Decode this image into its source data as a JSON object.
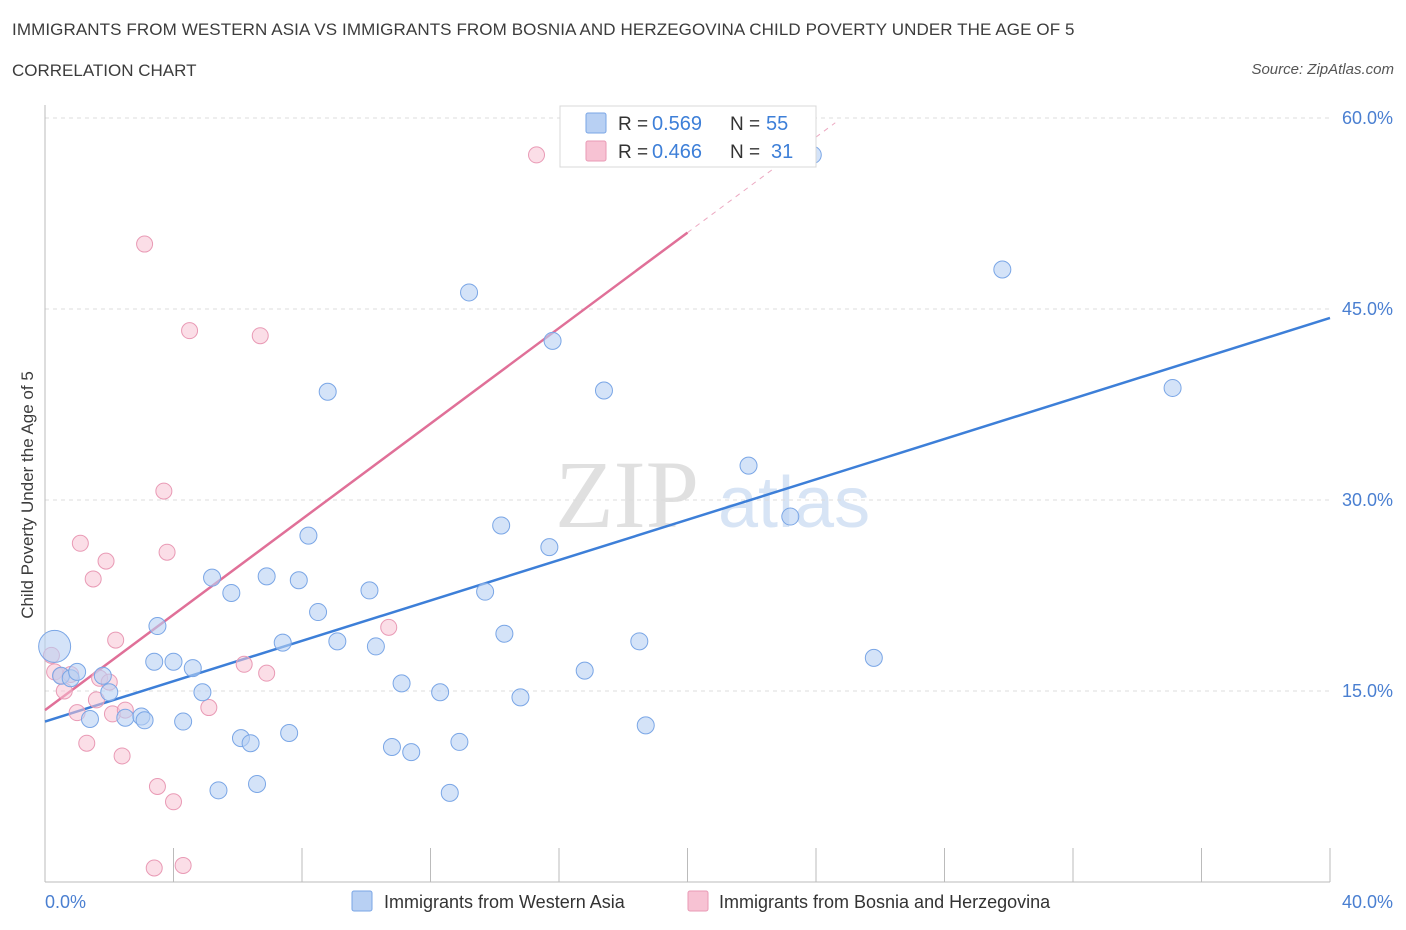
{
  "header": {
    "title": "IMMIGRANTS FROM WESTERN ASIA VS IMMIGRANTS FROM BOSNIA AND HERZEGOVINA CHILD POVERTY UNDER THE AGE OF 5",
    "subtitle": "CORRELATION CHART",
    "source": "Source: ZipAtlas.com"
  },
  "watermark": {
    "zip": "ZIP",
    "atlas": "atlas"
  },
  "colors": {
    "blue": "#3d7fd8",
    "blue_fill": "#b8d0f3",
    "pink": "#e07098",
    "pink_fill": "#f7c2d3",
    "grid": "#dddddd",
    "tick_text": "#4a7fd1"
  },
  "legend": {
    "blue": {
      "r_label": "R =",
      "r_value": "0.569",
      "n_label": "N =",
      "n_value": "55"
    },
    "pink": {
      "r_label": "R =",
      "r_value": "0.466",
      "n_label": "N =",
      "n_value": "31"
    }
  },
  "chart_data": {
    "type": "scatter",
    "title": "IMMIGRANTS FROM WESTERN ASIA VS IMMIGRANTS FROM BOSNIA AND HERZEGOVINA CHILD POVERTY UNDER THE AGE OF 5",
    "xlabel": "",
    "ylabel": "Child Poverty Under the Age of 5",
    "xlim": [
      0,
      40
    ],
    "ylim": [
      0,
      60
    ],
    "x_tick_labels": [
      "0.0%",
      "40.0%"
    ],
    "y_ticks": [
      15,
      30,
      45,
      60
    ],
    "y_tick_labels": [
      "15.0%",
      "30.0%",
      "45.0%",
      "60.0%"
    ],
    "grid": true,
    "series": [
      {
        "name": "Immigrants from Western Asia",
        "color": "#3d7fd8",
        "trend": {
          "x": [
            0,
            40
          ],
          "y": [
            12.6,
            44.3
          ]
        },
        "points": [
          [
            0.3,
            18.5
          ],
          [
            0.5,
            16.2
          ],
          [
            0.8,
            16.0
          ],
          [
            1.0,
            16.5
          ],
          [
            1.4,
            12.8
          ],
          [
            1.8,
            16.2
          ],
          [
            2.0,
            14.9
          ],
          [
            2.5,
            12.9
          ],
          [
            3.0,
            13.0
          ],
          [
            3.1,
            12.7
          ],
          [
            3.4,
            17.3
          ],
          [
            3.5,
            20.1
          ],
          [
            4.0,
            17.3
          ],
          [
            4.3,
            12.6
          ],
          [
            4.6,
            16.8
          ],
          [
            4.9,
            14.9
          ],
          [
            5.2,
            23.9
          ],
          [
            5.4,
            7.2
          ],
          [
            5.8,
            22.7
          ],
          [
            6.1,
            11.3
          ],
          [
            6.4,
            10.9
          ],
          [
            6.6,
            7.7
          ],
          [
            6.9,
            24.0
          ],
          [
            7.4,
            18.8
          ],
          [
            7.6,
            11.7
          ],
          [
            7.9,
            23.7
          ],
          [
            8.2,
            27.2
          ],
          [
            8.5,
            21.2
          ],
          [
            8.8,
            38.5
          ],
          [
            9.1,
            18.9
          ],
          [
            10.1,
            22.9
          ],
          [
            10.3,
            18.5
          ],
          [
            10.8,
            10.6
          ],
          [
            11.1,
            15.6
          ],
          [
            11.4,
            10.2
          ],
          [
            12.3,
            14.9
          ],
          [
            12.6,
            7.0
          ],
          [
            12.9,
            11.0
          ],
          [
            13.2,
            46.3
          ],
          [
            13.7,
            22.8
          ],
          [
            14.2,
            28.0
          ],
          [
            14.3,
            19.5
          ],
          [
            14.8,
            14.5
          ],
          [
            15.7,
            26.3
          ],
          [
            15.8,
            42.5
          ],
          [
            16.8,
            16.6
          ],
          [
            17.4,
            38.6
          ],
          [
            18.5,
            18.9
          ],
          [
            18.7,
            12.3
          ],
          [
            21.9,
            32.7
          ],
          [
            23.2,
            28.7
          ],
          [
            23.9,
            57.1
          ],
          [
            25.8,
            17.6
          ],
          [
            29.8,
            48.1
          ],
          [
            35.1,
            38.8
          ]
        ]
      },
      {
        "name": "Immigrants from Bosnia and Herzegovina",
        "color": "#e07098",
        "trend": {
          "x": [
            0,
            20
          ],
          "y": [
            13.5,
            51.0
          ]
        },
        "points": [
          [
            0.2,
            17.8
          ],
          [
            0.3,
            16.5
          ],
          [
            0.5,
            16.2
          ],
          [
            0.6,
            15.0
          ],
          [
            0.8,
            16.3
          ],
          [
            1.0,
            13.3
          ],
          [
            1.1,
            26.6
          ],
          [
            1.3,
            10.9
          ],
          [
            1.5,
            23.8
          ],
          [
            1.6,
            14.3
          ],
          [
            1.7,
            16.0
          ],
          [
            1.9,
            25.2
          ],
          [
            2.0,
            15.7
          ],
          [
            2.1,
            13.2
          ],
          [
            2.2,
            19.0
          ],
          [
            2.4,
            9.9
          ],
          [
            2.5,
            13.5
          ],
          [
            3.1,
            50.1
          ],
          [
            3.4,
            1.1
          ],
          [
            3.5,
            7.5
          ],
          [
            3.7,
            30.7
          ],
          [
            3.8,
            25.9
          ],
          [
            4.0,
            6.3
          ],
          [
            4.3,
            1.3
          ],
          [
            4.5,
            43.3
          ],
          [
            5.1,
            13.7
          ],
          [
            6.2,
            17.1
          ],
          [
            6.7,
            42.9
          ],
          [
            6.9,
            16.4
          ],
          [
            10.7,
            20.0
          ],
          [
            15.3,
            57.1
          ]
        ]
      }
    ],
    "legend": [
      "Immigrants from Western Asia",
      "Immigrants from Bosnia and Herzegovina"
    ]
  }
}
